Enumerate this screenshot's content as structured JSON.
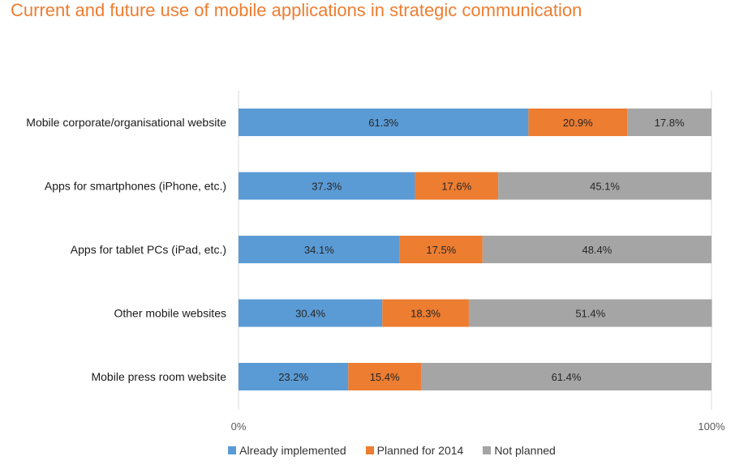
{
  "title": "Current and future use of mobile applications in strategic communication",
  "chart_data": {
    "type": "bar",
    "orientation": "horizontal",
    "stacked": true,
    "percent": true,
    "categories": [
      "Mobile corporate/organisational website",
      "Apps for smartphones (iPhone, etc.)",
      "Apps for tablet PCs (iPad, etc.)",
      "Other mobile websites",
      "Mobile press room website"
    ],
    "series": [
      {
        "name": "Already implemented",
        "color": "#5B9BD5",
        "values": [
          61.3,
          37.3,
          34.1,
          30.4,
          23.2
        ]
      },
      {
        "name": "Planned for 2014",
        "color": "#ED7D31",
        "values": [
          20.9,
          17.6,
          17.5,
          18.3,
          15.4
        ]
      },
      {
        "name": "Not planned",
        "color": "#A5A5A5",
        "values": [
          17.8,
          45.1,
          48.4,
          51.4,
          61.4
        ]
      }
    ],
    "data_labels": [
      [
        "61.3%",
        "20.9%",
        "17.8%"
      ],
      [
        "37.3%",
        "17.6%",
        "45.1%"
      ],
      [
        "34.1%",
        "17.5%",
        "48.4%"
      ],
      [
        "30.4%",
        "18.3%",
        "51.4%"
      ],
      [
        "23.2%",
        "15.4%",
        "61.4%"
      ]
    ],
    "x_ticks": [
      "0%",
      "100%"
    ],
    "xlim": [
      0,
      100
    ],
    "grid": false,
    "legend_position": "bottom"
  }
}
